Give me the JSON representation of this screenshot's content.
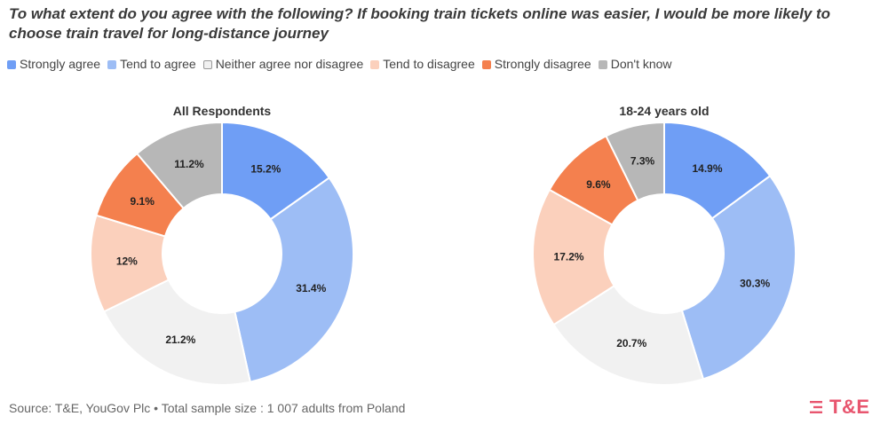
{
  "title": "To what extent do you agree with the following? If booking train tickets online was easier, I would be more likely to choose train travel for long-distance journey",
  "legend": [
    {
      "label": "Strongly agree",
      "color": "#6f9ef5"
    },
    {
      "label": "Tend to agree",
      "color": "#9dbdf5"
    },
    {
      "label": "Neither agree nor disagree",
      "color": "#f1f1f1"
    },
    {
      "label": "Tend to disagree",
      "color": "#fbd0bc"
    },
    {
      "label": "Strongly disagree",
      "color": "#f4804e"
    },
    {
      "label": "Don't know",
      "color": "#b7b7b7"
    }
  ],
  "chart_data": [
    {
      "type": "pie",
      "title": "All Respondents",
      "categories": [
        "Strongly agree",
        "Tend to agree",
        "Neither agree nor disagree",
        "Tend to disagree",
        "Strongly disagree",
        "Don't know"
      ],
      "values": [
        15.2,
        31.4,
        21.2,
        12,
        9.1,
        11.2
      ],
      "labels": [
        "15.2%",
        "31.4%",
        "21.2%",
        "12%",
        "9.1%",
        "11.2%"
      ],
      "colors": [
        "#6f9ef5",
        "#9dbdf5",
        "#f1f1f1",
        "#fbd0bc",
        "#f4804e",
        "#b7b7b7"
      ]
    },
    {
      "type": "pie",
      "title": "18-24 years old",
      "categories": [
        "Strongly agree",
        "Tend to agree",
        "Neither agree nor disagree",
        "Tend to disagree",
        "Strongly disagree",
        "Don't know"
      ],
      "values": [
        14.9,
        30.3,
        20.7,
        17.2,
        9.6,
        7.3
      ],
      "labels": [
        "14.9%",
        "30.3%",
        "20.7%",
        "17.2%",
        "9.6%",
        "7.3%"
      ],
      "colors": [
        "#6f9ef5",
        "#9dbdf5",
        "#f1f1f1",
        "#fbd0bc",
        "#f4804e",
        "#b7b7b7"
      ]
    }
  ],
  "footer": "Source: T&E, YouGov Plc • Total sample size : 1 007 adults from Poland",
  "logo": {
    "text": "T&E",
    "color": "#e8566f"
  }
}
